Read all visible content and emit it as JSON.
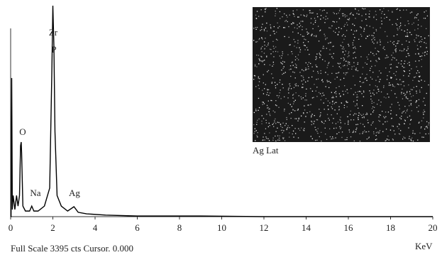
{
  "chart_data": {
    "type": "line",
    "x": [
      0,
      0.02,
      0.05,
      0.08,
      0.12,
      0.2,
      0.28,
      0.35,
      0.42,
      0.47,
      0.5,
      0.52,
      0.58,
      0.7,
      0.9,
      1.0,
      1.1,
      1.3,
      1.6,
      1.85,
      1.95,
      2.0,
      2.05,
      2.1,
      2.2,
      2.4,
      2.7,
      3.0,
      3.2,
      3.6,
      4.5,
      6,
      9,
      12,
      20
    ],
    "values": [
      0,
      0,
      2230,
      115,
      340,
      115,
      340,
      170,
      340,
      1140,
      1200,
      1030,
      170,
      90,
      90,
      170,
      90,
      90,
      170,
      460,
      2290,
      3395,
      2740,
      1370,
      340,
      170,
      90,
      160,
      70,
      45,
      25,
      10,
      10,
      0,
      0
    ],
    "color": "#000000",
    "xlim": [
      0,
      20
    ],
    "xticks": [
      0,
      2,
      4,
      6,
      8,
      10,
      12,
      14,
      16,
      18,
      20
    ],
    "ylim": [
      0,
      3395
    ],
    "xlabel": "KeV",
    "footer": "Full Scale 3395 cts Cursor. 0.000",
    "annotations": [
      "Zr",
      "P",
      "O",
      "Na",
      "Ag"
    ],
    "inset_label": "Ag Lat"
  }
}
